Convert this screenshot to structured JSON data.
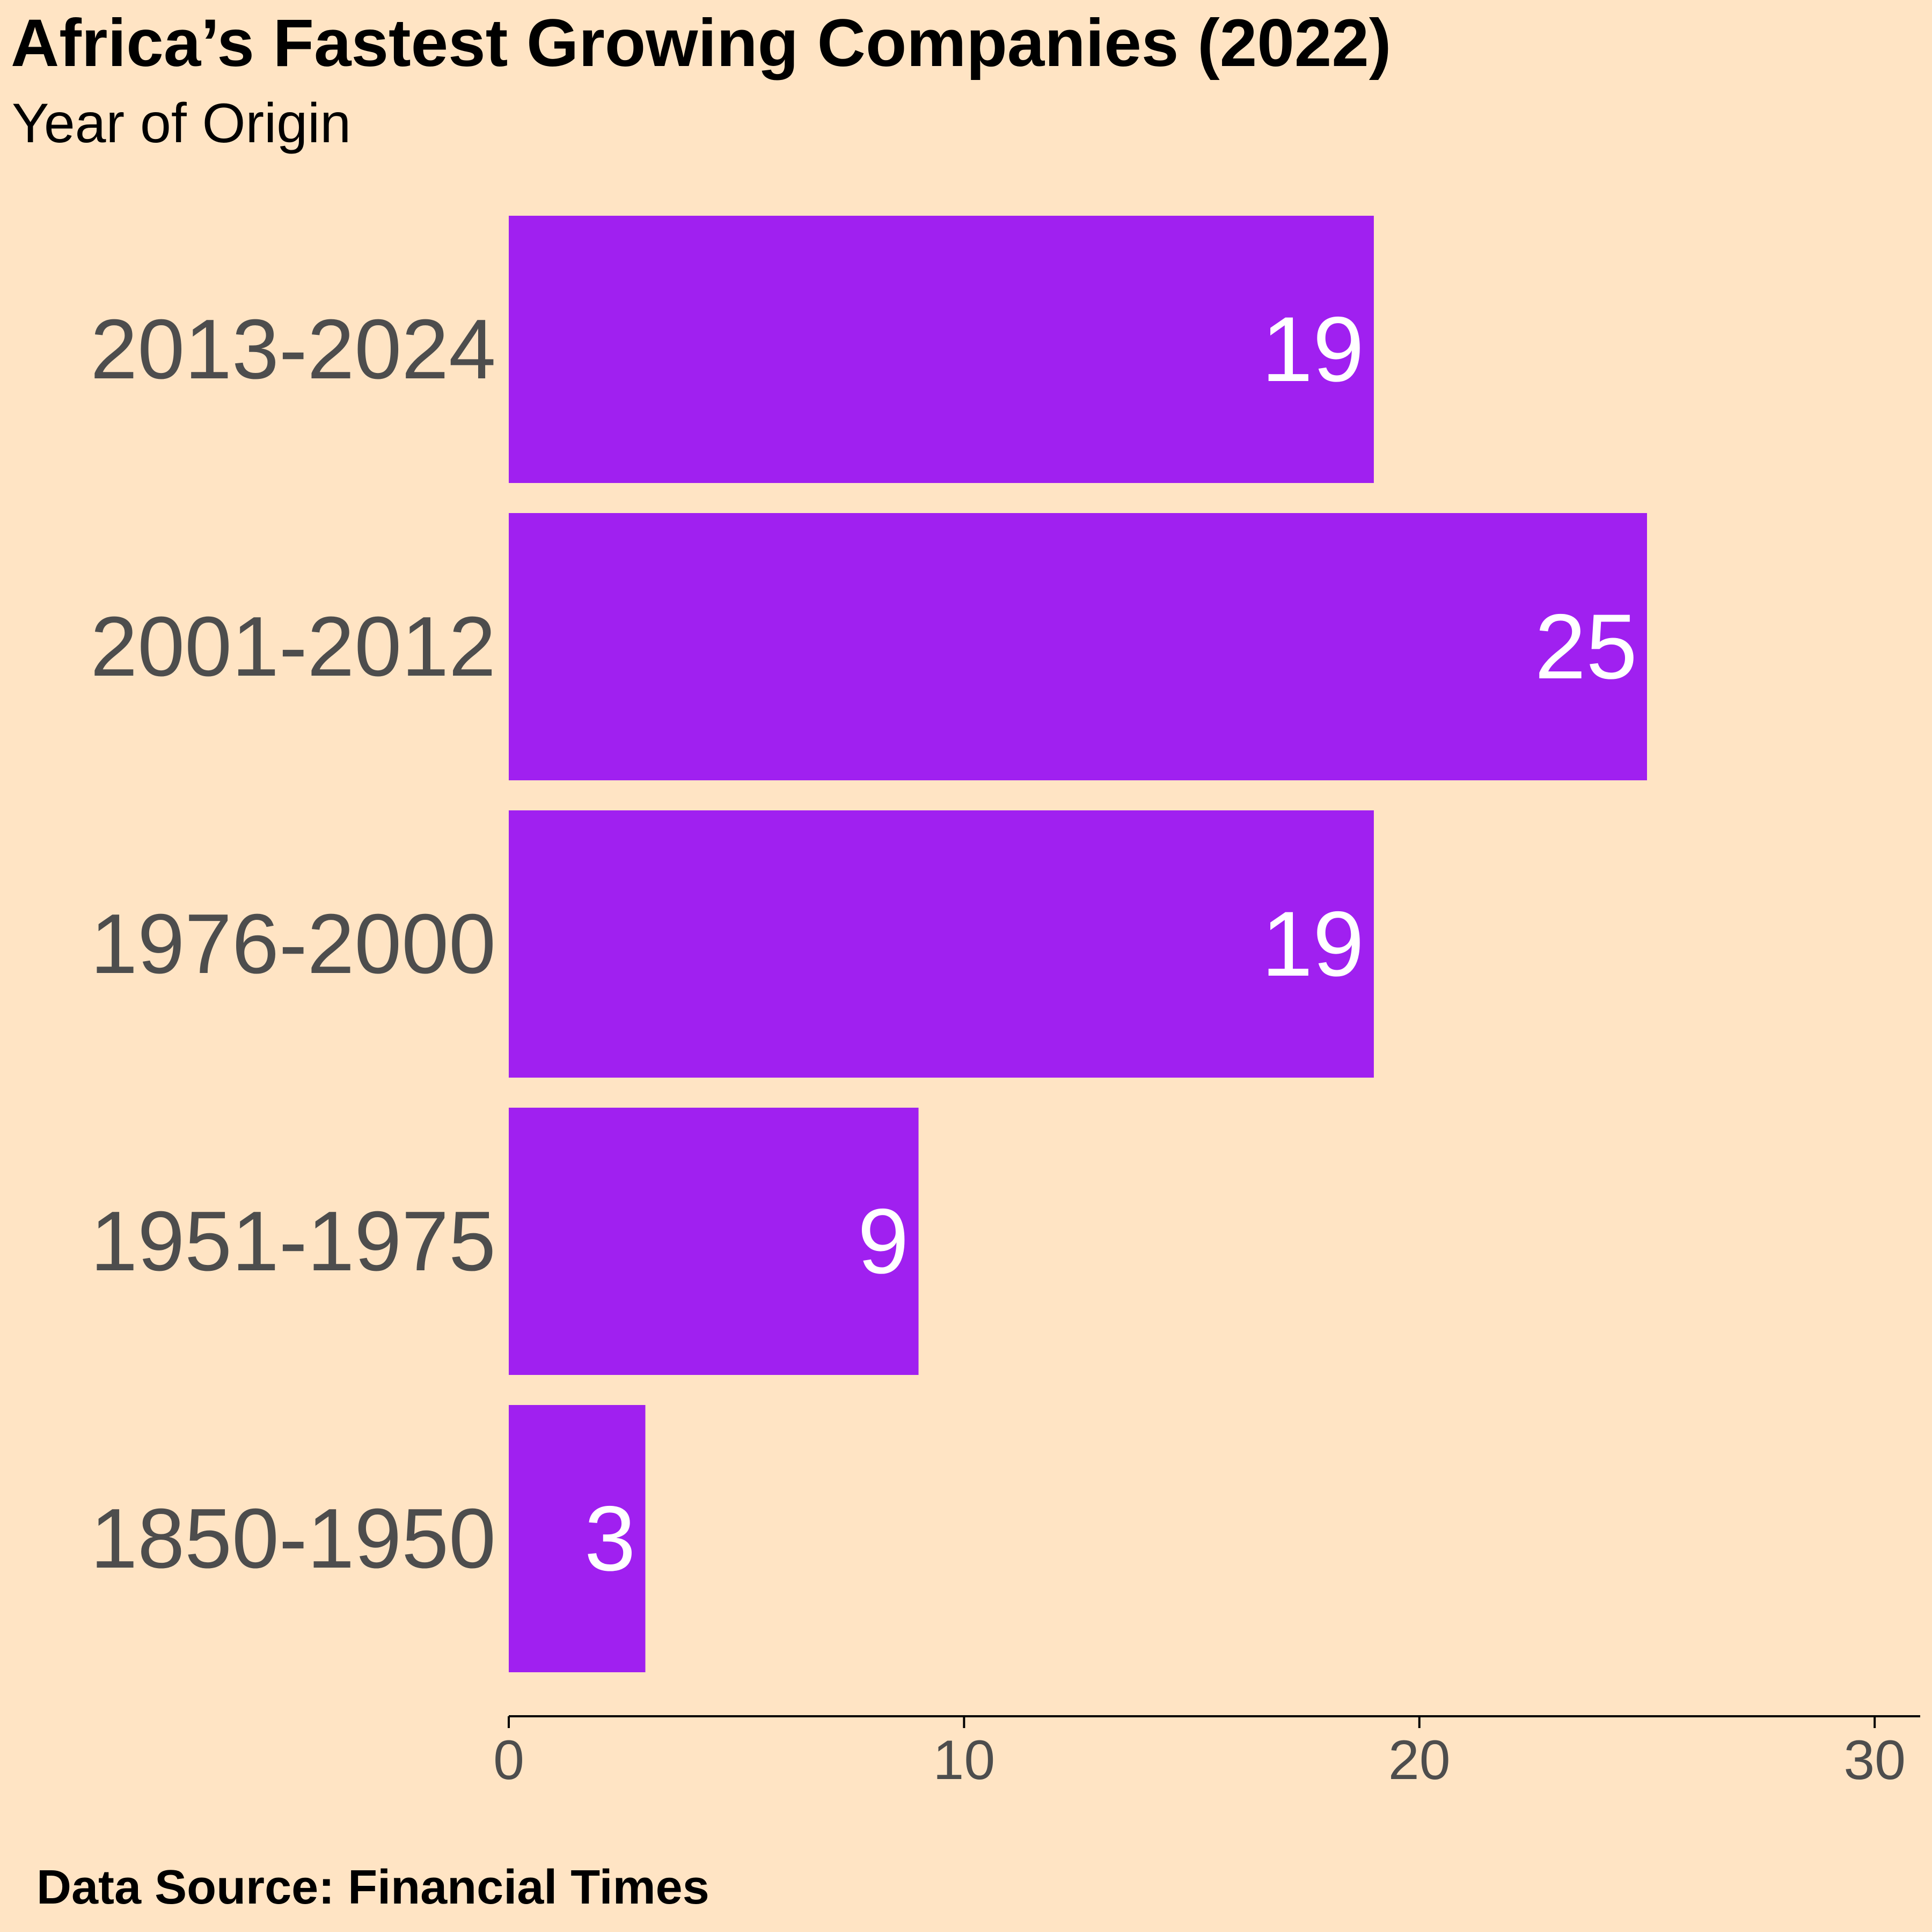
{
  "chart_data": {
    "type": "bar",
    "orientation": "horizontal",
    "title": "Africa’s Fastest Growing Companies (2022)",
    "subtitle": "Year of Origin",
    "caption": "Data Source: Financial Times",
    "categories": [
      "2013-2024",
      "2001-2012",
      "1976-2000",
      "1951-1975",
      "1850-1950"
    ],
    "values": [
      19,
      25,
      19,
      9,
      3
    ],
    "xlabel": "",
    "ylabel": "",
    "xlim": [
      0,
      31
    ],
    "x_ticks": [
      "0",
      "10",
      "20",
      "30"
    ],
    "data_labels": true,
    "grid": false,
    "legend": "none",
    "bar_color": "#A020F0",
    "label_color": "#FFFFFF",
    "tick_label_color": "#4D4D4D",
    "background_color": "#FFE4C4"
  }
}
